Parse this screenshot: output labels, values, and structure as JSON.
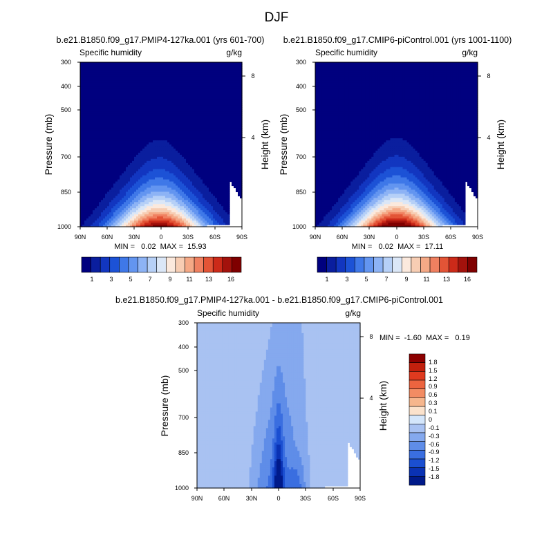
{
  "figure": {
    "title": "DJF"
  },
  "colors": {
    "abs_levels": [
      "#00007f",
      "#0a1e9e",
      "#1236c0",
      "#1c52d6",
      "#3f78e8",
      "#6395f0",
      "#8db3f5",
      "#b6d0f7",
      "#dbe7f7",
      "#fbe9dd",
      "#f7cdb3",
      "#f5a986",
      "#f08060",
      "#e35436",
      "#cc2a19",
      "#a3120c",
      "#7f0000"
    ],
    "diff_levels": [
      "#001a8a",
      "#0a32b4",
      "#1b4fd1",
      "#3a6ee0",
      "#5f8de8",
      "#85a9ee",
      "#a9c2f2",
      "#d4e6fb",
      "#fbe2cc",
      "#f6b68d",
      "#f28c63",
      "#ec643f",
      "#df3a1f",
      "#c1200d",
      "#8c0000"
    ]
  },
  "chart_data": [
    {
      "type": "contour",
      "panel": "top-left",
      "title": "b.e21.B1850.f09_g17.PMIP4-127ka.001 (yrs 601-700)",
      "left_label": "Specific humidity",
      "right_label": "g/kg",
      "xlabel": "",
      "ylabel": "Pressure (mb)",
      "ylabel_right": "Height (km)",
      "x_ticks": [
        "90N",
        "60N",
        "30N",
        "0",
        "30S",
        "60S",
        "90S"
      ],
      "y_ticks": [
        300,
        400,
        500,
        700,
        850,
        1000
      ],
      "ylim": [
        1000,
        300
      ],
      "height_ticks": [
        "8",
        "4"
      ],
      "stats": "MIN =   0.02  MAX =  15.93",
      "min": 0.02,
      "max": 15.93,
      "colorbar_labels": [
        "1",
        "3",
        "5",
        "7",
        "9",
        "11",
        "13",
        "16"
      ],
      "peak_lat": 2,
      "peak_value": 15.93
    },
    {
      "type": "contour",
      "panel": "top-right",
      "title": "b.e21.B1850.f09_g17.CMIP6-piControl.001 (yrs 1001-1100)",
      "left_label": "Specific humidity",
      "right_label": "g/kg",
      "xlabel": "",
      "ylabel": "Pressure (mb)",
      "ylabel_right": "Height (km)",
      "x_ticks": [
        "90N",
        "60N",
        "30N",
        "0",
        "30S",
        "60S",
        "90S"
      ],
      "y_ticks": [
        300,
        400,
        500,
        700,
        850,
        1000
      ],
      "ylim": [
        1000,
        300
      ],
      "height_ticks": [
        "8",
        "4"
      ],
      "stats": "MIN =   0.02  MAX =  17.11",
      "min": 0.02,
      "max": 17.11,
      "colorbar_labels": [
        "1",
        "3",
        "5",
        "7",
        "9",
        "11",
        "13",
        "16"
      ],
      "peak_lat": 0,
      "peak_value": 17.11
    },
    {
      "type": "contour",
      "panel": "bottom",
      "title": "b.e21.B1850.f09_g17.PMIP4-127ka.001 - b.e21.B1850.f09_g17.CMIP6-piControl.001",
      "left_label": "Specific humidity",
      "right_label": "g/kg",
      "xlabel": "",
      "ylabel": "Pressure (mb)",
      "ylabel_right": "Height (km)",
      "x_ticks": [
        "90N",
        "60N",
        "30N",
        "0",
        "30S",
        "60S",
        "90S"
      ],
      "y_ticks": [
        300,
        400,
        500,
        700,
        850,
        1000
      ],
      "ylim": [
        1000,
        300
      ],
      "height_ticks": [
        "8",
        "4"
      ],
      "stats": "MIN =  -1.60  MAX =   0.19",
      "min": -1.6,
      "max": 0.19,
      "colorbar_labels": [
        "1.8",
        "1.5",
        "1.2",
        "0.9",
        "0.6",
        "0.3",
        "0.1",
        "0",
        "-0.1",
        "-0.3",
        "-0.6",
        "-0.9",
        "-1.2",
        "-1.5",
        "-1.8"
      ]
    }
  ]
}
